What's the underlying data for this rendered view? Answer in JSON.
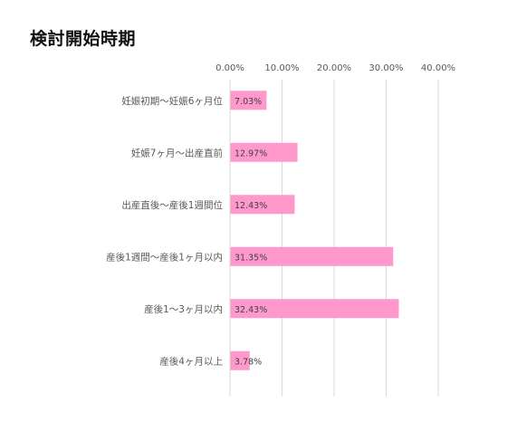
{
  "chart_data": {
    "type": "bar",
    "orientation": "horizontal",
    "title": "検討開始時期",
    "categories": [
      "妊娠初期～妊娠6ヶ月位",
      "妊娠7ヶ月～出産直前",
      "出産直後～産後1週間位",
      "産後1週間～産後1ヶ月以内",
      "産後1～3ヶ月以内",
      "産後4ヶ月以上"
    ],
    "values": [
      7.03,
      12.97,
      12.43,
      31.35,
      32.43,
      3.78
    ],
    "data_labels": [
      "7.03%",
      "12.97%",
      "12.43%",
      "31.35%",
      "32.43%",
      "3.78%"
    ],
    "x_ticks": [
      "0.00%",
      "10.00%",
      "20.00%",
      "30.00%",
      "40.00%"
    ],
    "xlim": [
      0,
      40
    ],
    "x_axis_position": "top",
    "grid": true,
    "legend": "none",
    "colors": {
      "bar": "#FF99CC",
      "grid": "#D9D9D9",
      "text": "#595959"
    }
  }
}
